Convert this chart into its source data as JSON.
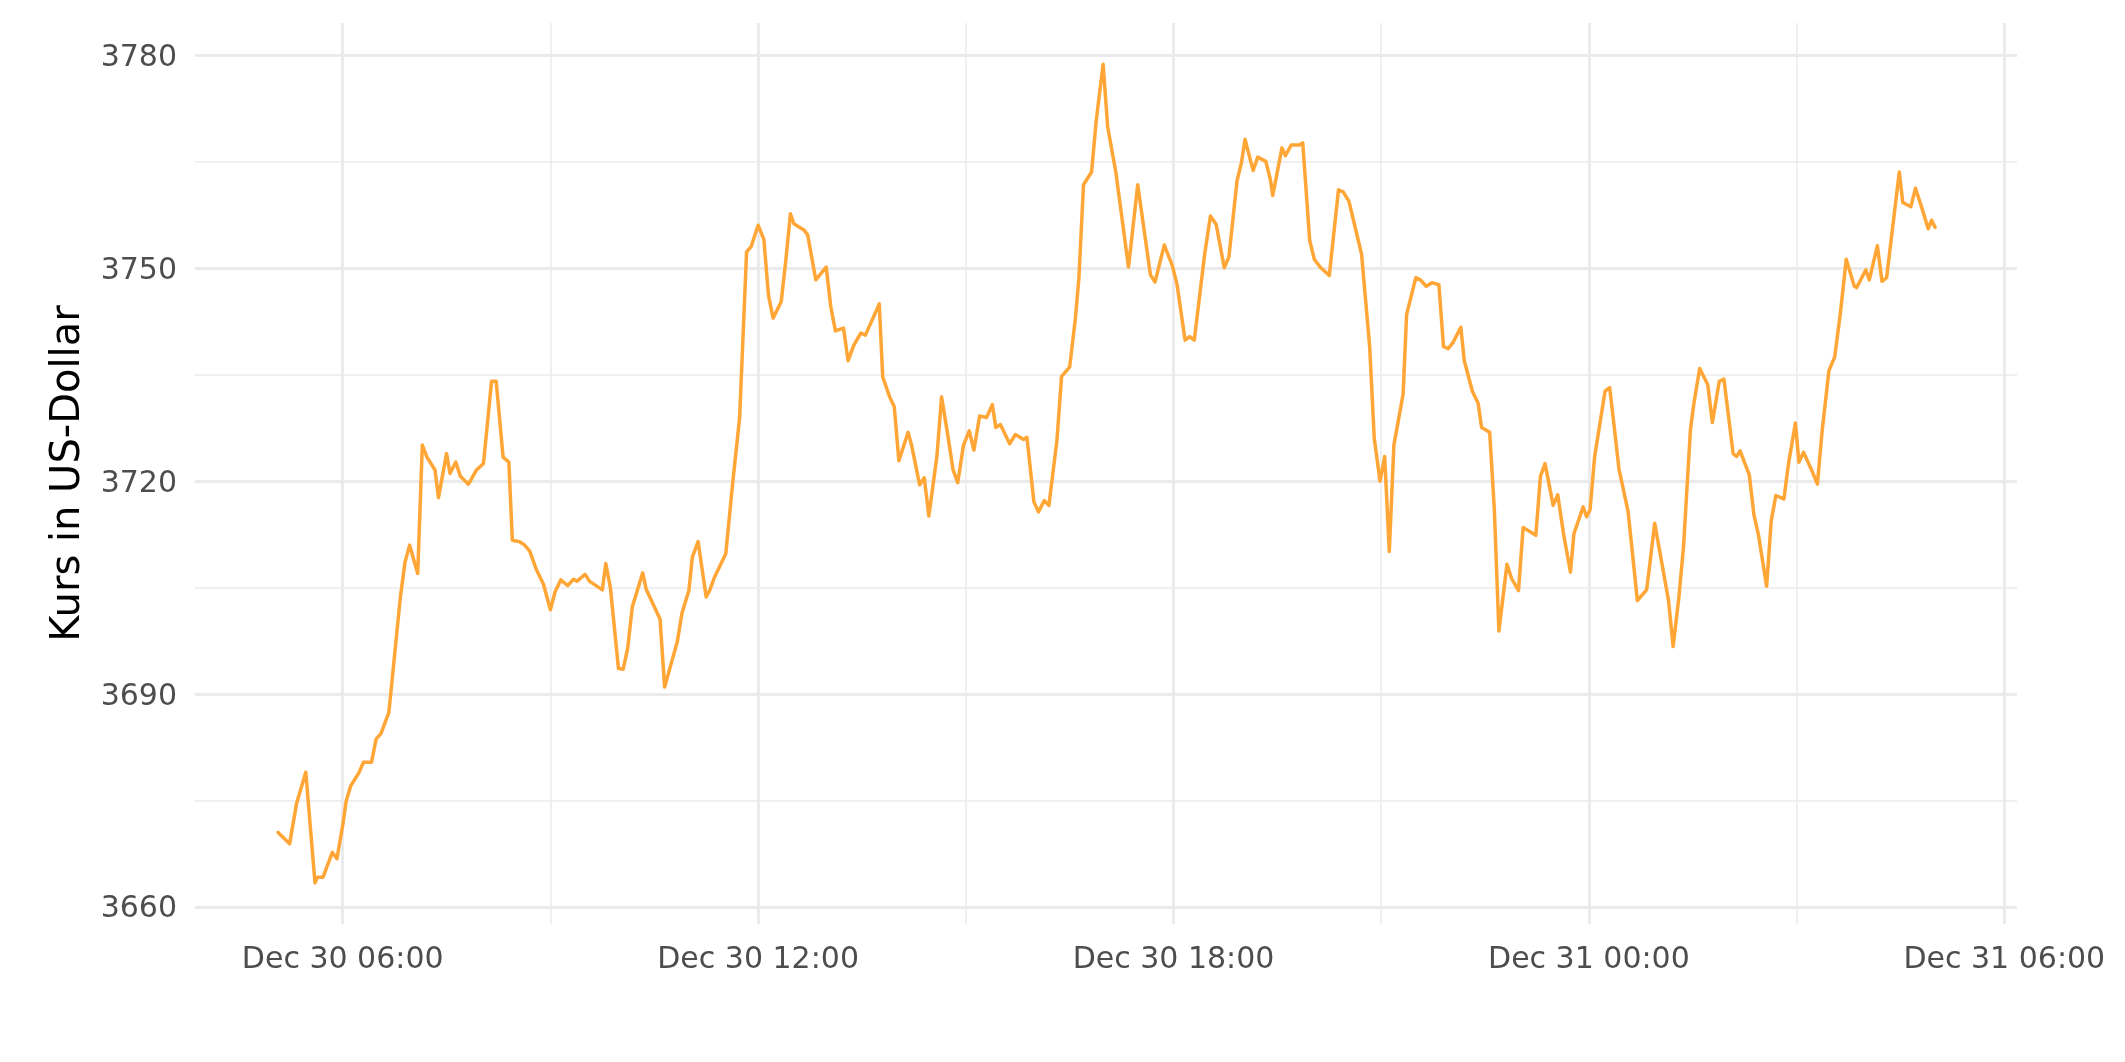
{
  "chart_data": {
    "type": "line",
    "ylabel": "Kurs in US-Dollar",
    "grid": true,
    "line_style": "solid",
    "marker": "none",
    "xlim": [
      "--12-30T03:52",
      "--12-31T06:11"
    ],
    "xticks": [
      {
        "value": "--12-30T06:00",
        "label": "Dec 30 06:00"
      },
      {
        "value": "--12-30T09:00",
        "label": null
      },
      {
        "value": "--12-30T12:00",
        "label": "Dec 30 12:00"
      },
      {
        "value": "--12-30T15:00",
        "label": null
      },
      {
        "value": "--12-30T18:00",
        "label": "Dec 30 18:00"
      },
      {
        "value": "--12-30T21:00",
        "label": null
      },
      {
        "value": "--12-31T00:00",
        "label": "Dec 31 00:00"
      },
      {
        "value": "--12-31T03:00",
        "label": null
      },
      {
        "value": "--12-31T06:00",
        "label": "Dec 31 06:00"
      }
    ],
    "ylim": [
      3657.6,
      3784.6
    ],
    "yticks": [
      3660,
      {
        "value": 3675,
        "label": null
      },
      3690,
      {
        "value": 3705,
        "label": null
      },
      3720,
      {
        "value": 3735,
        "label": null
      },
      3750,
      {
        "value": 3765,
        "label": null
      },
      3780
    ],
    "series": [
      {
        "color": "#ffa636",
        "x": [
          "--12-30T05:04",
          "--12-30T05:14",
          "--12-30T05:20",
          "--12-30T05:28",
          "--12-30T05:36",
          "--12-30T05:38",
          "--12-30T05:43",
          "--12-30T05:51",
          "--12-30T05:55",
          "--12-30T06:00",
          "--12-30T06:03",
          "--12-30T06:07",
          "--12-30T06:14",
          "--12-30T06:18",
          "--12-30T06:25",
          "--12-30T06:29",
          "--12-30T06:33",
          "--12-30T06:40",
          "--12-30T06:50",
          "--12-30T06:54",
          "--12-30T06:58",
          "--12-30T07:05",
          "--12-30T07:09",
          "--12-30T07:13",
          "--12-30T07:20",
          "--12-30T07:23",
          "--12-30T07:30",
          "--12-30T07:33",
          "--12-30T07:38",
          "--12-30T07:42",
          "--12-30T07:49",
          "--12-30T07:56",
          "--12-30T08:02",
          "--12-30T08:09",
          "--12-30T08:13",
          "--12-30T08:19",
          "--12-30T08:24",
          "--12-30T08:27",
          "--12-30T08:33",
          "--12-30T08:37",
          "--12-30T08:42",
          "--12-30T08:48",
          "--12-30T08:54",
          "--12-30T09:00",
          "--12-30T09:04",
          "--12-30T09:09",
          "--12-30T09:15",
          "--12-30T09:20",
          "--12-30T09:23",
          "--12-30T09:30",
          "--12-30T09:34",
          "--12-30T09:45",
          "--12-30T09:48",
          "--12-30T09:52",
          "--12-30T09:59",
          "--12-30T10:03",
          "--12-30T10:07",
          "--12-30T10:11",
          "--12-30T10:20",
          "--12-30T10:23",
          "--12-30T10:35",
          "--12-30T10:39",
          "--12-30T10:50",
          "--12-30T10:54",
          "--12-30T11:00",
          "--12-30T11:03",
          "--12-30T11:08",
          "--12-30T11:15",
          "--12-30T11:18",
          "--12-30T11:22",
          "--12-30T11:32",
          "--12-30T11:38",
          "--12-30T11:44",
          "--12-30T11:50",
          "--12-30T11:54",
          "--12-30T12:00",
          "--12-30T12:05",
          "--12-30T12:09",
          "--12-30T12:13",
          "--12-30T12:20",
          "--12-30T12:24",
          "--12-30T12:28",
          "--12-30T12:31",
          "--12-30T12:40",
          "--12-30T12:43",
          "--12-30T12:50",
          "--12-30T12:59",
          "--12-30T13:03",
          "--12-30T13:07",
          "--12-30T13:14",
          "--12-30T13:18",
          "--12-30T13:23",
          "--12-30T13:29",
          "--12-30T13:33",
          "--12-30T13:45",
          "--12-30T13:48",
          "--12-30T13:54",
          "--12-30T13:58",
          "--12-30T14:02",
          "--12-30T14:10",
          "--12-30T14:13",
          "--12-30T14:20",
          "--12-30T14:24",
          "--12-30T14:28",
          "--12-30T14:35",
          "--12-30T14:39",
          "--12-30T14:44",
          "--12-30T14:49",
          "--12-30T14:53",
          "--12-30T14:58",
          "--12-30T15:03",
          "--12-30T15:07",
          "--12-30T15:12",
          "--12-30T15:18",
          "--12-30T15:23",
          "--12-30T15:26",
          "--12-30T15:30",
          "--12-30T15:38",
          "--12-30T15:43",
          "--12-30T15:50",
          "--12-30T15:53",
          "--12-30T15:59",
          "--12-30T16:03",
          "--12-30T16:08",
          "--12-30T16:12",
          "--12-30T16:19",
          "--12-30T16:23",
          "--12-30T16:30",
          "--12-30T16:35",
          "--12-30T16:38",
          "--12-30T16:42",
          "--12-30T16:49",
          "--12-30T16:53",
          "--12-30T16:59",
          "--12-30T17:03",
          "--12-30T17:10",
          "--12-30T17:21",
          "--12-30T17:29",
          "--12-30T17:40",
          "--12-30T17:44",
          "--12-30T17:52",
          "--12-30T17:59",
          "--12-30T18:03",
          "--12-30T18:10",
          "--12-30T18:14",
          "--12-30T18:18",
          "--12-30T18:27",
          "--12-30T18:32",
          "--12-30T18:37",
          "--12-30T18:44",
          "--12-30T18:48",
          "--12-30T18:55",
          "--12-30T18:59",
          "--12-30T19:02",
          "--12-30T19:09",
          "--12-30T19:13",
          "--12-30T19:20",
          "--12-30T19:24",
          "--12-30T19:26",
          "--12-30T19:34",
          "--12-30T19:37",
          "--12-30T19:42",
          "--12-30T19:49",
          "--12-30T19:52",
          "--12-30T19:58",
          "--12-30T20:02",
          "--12-30T20:07",
          "--12-30T20:15",
          "--12-30T20:23",
          "--12-30T20:27",
          "--12-30T20:32",
          "--12-30T20:43",
          "--12-30T20:50",
          "--12-30T20:54",
          "--12-30T20:59",
          "--12-30T21:03",
          "--12-30T21:07",
          "--12-30T21:11",
          "--12-30T21:19",
          "--12-30T21:22",
          "--12-30T21:30",
          "--12-30T21:34",
          "--12-30T21:39",
          "--12-30T21:44",
          "--12-30T21:50",
          "--12-30T21:54",
          "--12-30T21:58",
          "--12-30T22:02",
          "--12-30T22:09",
          "--12-30T22:12",
          "--12-30T22:19",
          "--12-30T22:24",
          "--12-30T22:27",
          "--12-30T22:34",
          "--12-30T22:38",
          "--12-30T22:42",
          "--12-30T22:49",
          "--12-30T22:53",
          "--12-30T22:59",
          "--12-30T23:03",
          "--12-30T23:14",
          "--12-30T23:18",
          "--12-30T23:22",
          "--12-30T23:29",
          "--12-30T23:33",
          "--12-30T23:38",
          "--12-30T23:44",
          "--12-30T23:47",
          "--12-30T23:55",
          "--12-30T23:58",
          "--12-31T00:01",
          "--12-31T00:05",
          "--12-31T00:14",
          "--12-31T00:18",
          "--12-31T00:22",
          "--12-31T00:26",
          "--12-31T00:34",
          "--12-31T00:42",
          "--12-31T00:50",
          "--12-31T00:53",
          "--12-31T00:57",
          "--12-31T01:09",
          "--12-31T01:13",
          "--12-31T01:18",
          "--12-31T01:22",
          "--12-31T01:28",
          "--12-31T01:31",
          "--12-31T01:36",
          "--12-31T01:43",
          "--12-31T01:47",
          "--12-31T01:53",
          "--12-31T01:57",
          "--12-31T02:05",
          "--12-31T02:08",
          "--12-31T02:11",
          "--12-31T02:19",
          "--12-31T02:23",
          "--12-31T02:27",
          "--12-31T02:34",
          "--12-31T02:38",
          "--12-31T02:42",
          "--12-31T02:49",
          "--12-31T02:53",
          "--12-31T02:59",
          "--12-31T03:02",
          "--12-31T03:06",
          "--12-31T03:13",
          "--12-31T03:18",
          "--12-31T03:22",
          "--12-31T03:28",
          "--12-31T03:33",
          "--12-31T03:38",
          "--12-31T03:43",
          "--12-31T03:50",
          "--12-31T03:52",
          "--12-31T04:00",
          "--12-31T04:03",
          "--12-31T04:10",
          "--12-31T04:14",
          "--12-31T04:18",
          "--12-31T04:29",
          "--12-31T04:32",
          "--12-31T04:39",
          "--12-31T04:43",
          "--12-31T04:49",
          "--12-31T04:54",
          "--12-31T04:57",
          "--12-31T05:00"
        ],
        "values": [
          3670.5,
          3668.9,
          3674.6,
          3679.0,
          3663.4,
          3664.2,
          3664.2,
          3667.7,
          3666.8,
          3671.5,
          3674.9,
          3677.1,
          3678.9,
          3680.4,
          3680.4,
          3683.7,
          3684.4,
          3687.4,
          3703.7,
          3708.6,
          3711.0,
          3707.0,
          3725.1,
          3723.4,
          3721.6,
          3717.7,
          3723.9,
          3721.1,
          3722.7,
          3720.7,
          3719.6,
          3721.6,
          3722.5,
          3734.1,
          3734.1,
          3723.4,
          3722.7,
          3711.7,
          3711.5,
          3711.1,
          3710.2,
          3707.5,
          3705.5,
          3701.9,
          3704.4,
          3706.1,
          3705.3,
          3706.2,
          3705.9,
          3706.9,
          3705.9,
          3704.7,
          3708.4,
          3705.0,
          3693.6,
          3693.5,
          3696.5,
          3702.3,
          3707.1,
          3704.8,
          3700.6,
          3691.0,
          3697.4,
          3701.4,
          3704.6,
          3709.3,
          3711.5,
          3703.7,
          3704.6,
          3706.4,
          3709.8,
          3719.8,
          3729.0,
          3752.3,
          3753.1,
          3756.1,
          3754.1,
          3746.2,
          3743.0,
          3745.3,
          3751.1,
          3757.7,
          3756.3,
          3755.4,
          3754.7,
          3748.4,
          3750.2,
          3744.6,
          3741.2,
          3741.6,
          3737.0,
          3739.2,
          3740.9,
          3740.6,
          3745.0,
          3734.7,
          3731.9,
          3730.5,
          3722.9,
          3726.9,
          3725.1,
          3719.5,
          3720.5,
          3715.1,
          3723.6,
          3731.9,
          3726.9,
          3721.6,
          3719.8,
          3725.1,
          3727.1,
          3724.4,
          3729.2,
          3729.0,
          3730.8,
          3727.6,
          3728.0,
          3725.3,
          3726.6,
          3725.9,
          3726.2,
          3717.1,
          3715.7,
          3717.3,
          3716.6,
          3725.8,
          3734.8,
          3736.1,
          3743.0,
          3748.6,
          3761.8,
          3763.6,
          3770.8,
          3778.8,
          3769.9,
          3763.6,
          3750.2,
          3761.8,
          3749.1,
          3748.1,
          3753.3,
          3750.4,
          3747.8,
          3739.9,
          3740.4,
          3739.9,
          3752.0,
          3757.4,
          3756.2,
          3750.1,
          3751.6,
          3762.3,
          3765.0,
          3768.2,
          3763.8,
          3765.7,
          3765.1,
          3762.5,
          3760.3,
          3767.0,
          3765.9,
          3767.4,
          3767.4,
          3767.7,
          3754.0,
          3751.3,
          3750.2,
          3749.0,
          3761.1,
          3760.8,
          3759.5,
          3752.0,
          3739.0,
          3726.0,
          3720.0,
          3723.5,
          3710.1,
          3725.1,
          3732.3,
          3743.5,
          3748.7,
          3748.4,
          3747.5,
          3748.0,
          3747.7,
          3739.0,
          3738.7,
          3739.5,
          3741.7,
          3737.0,
          3732.7,
          3731.0,
          3727.6,
          3726.9,
          3716.2,
          3698.9,
          3708.3,
          3706.3,
          3704.6,
          3713.5,
          3712.4,
          3720.7,
          3722.5,
          3716.6,
          3718.1,
          3712.6,
          3707.2,
          3712.6,
          3716.4,
          3715.0,
          3716.0,
          3723.5,
          3732.7,
          3733.2,
          3727.6,
          3721.8,
          3715.7,
          3703.2,
          3704.7,
          3708.6,
          3714.1,
          3703.2,
          3696.7,
          3703.7,
          3710.8,
          3727.3,
          3731.0,
          3735.9,
          3733.6,
          3728.3,
          3734.1,
          3734.4,
          3723.9,
          3723.5,
          3724.3,
          3720.9,
          3715.3,
          3712.4,
          3705.2,
          3714.4,
          3718.0,
          3717.5,
          3722.5,
          3728.2,
          3722.7,
          3724.1,
          3721.6,
          3719.6,
          3726.9,
          3735.6,
          3737.5,
          3743.8,
          3751.3,
          3747.5,
          3747.3,
          3749.8,
          3748.4,
          3753.2,
          3748.2,
          3748.7,
          3763.6,
          3759.3,
          3758.7,
          3761.3,
          3758.3,
          3755.6,
          3756.8,
          3755.8
        ]
      }
    ]
  }
}
